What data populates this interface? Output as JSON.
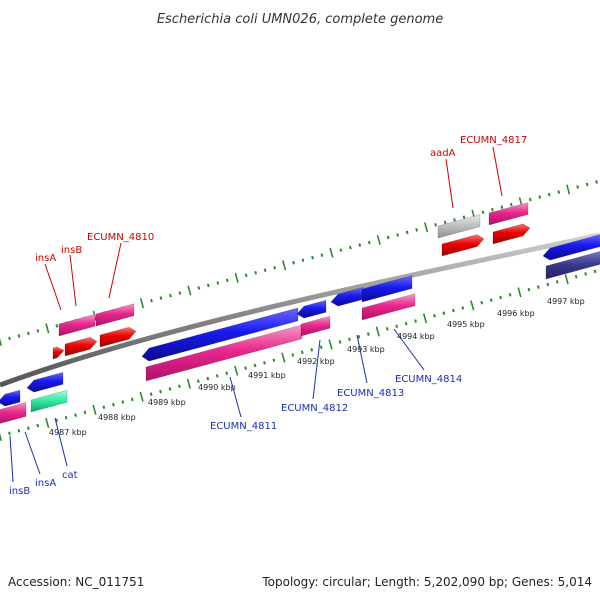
{
  "title": "Escherichia coli UMN026, complete genome",
  "footer": {
    "accession": "Accession: NC_011751",
    "stats": "Topology: circular; Length: 5,202,090 bp; Genes: 5,014"
  },
  "tick_labels": [
    "4987 kbp",
    "4988 kbp",
    "4989 kbp",
    "4990 kbp",
    "4991 kbp",
    "4992 kbp",
    "4993 kbp",
    "4994 kbp",
    "4995 kbp",
    "4996 kbp",
    "4997 kbp"
  ],
  "forward_labels": [
    "insA",
    "insB",
    "ECUMN_4810",
    "aadA",
    "ECUMN_4817"
  ],
  "reverse_labels": [
    "insB",
    "insA",
    "cat",
    "ECUMN_4811",
    "ECUMN_4812",
    "ECUMN_4813",
    "ECUMN_4814"
  ],
  "colors": {
    "backbone": "#8a8a8a",
    "tick": "#2f8a2f",
    "forward_label": "#cc0000",
    "reverse_label": "#1a2fb0",
    "cds_pink": "#e8288c",
    "cds_red": "#e80000",
    "cds_blue": "#1a1aee",
    "cds_gray": "#bdbdbd",
    "cds_teal": "#2ee8a0",
    "cds_navy": "#3a3a8c"
  }
}
